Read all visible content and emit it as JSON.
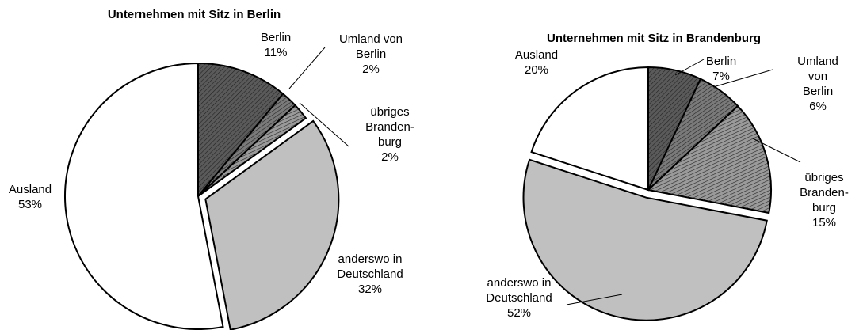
{
  "chart_data": [
    {
      "type": "pie",
      "title": "Unternehmen mit Sitz in Berlin",
      "categories": [
        "Berlin",
        "Umland von\nBerlin",
        "übriges\nBranden-\nburg",
        "anderswo in\nDeutschland",
        "Ausland"
      ],
      "values": [
        11,
        2,
        2,
        32,
        53
      ],
      "value_labels": [
        "11%",
        "2%",
        "2%",
        "32%",
        "53%"
      ],
      "colors": [
        "#5a5a5a",
        "#7a7a7a",
        "#9a9a9a",
        "#c0c0c0",
        "#ffffff"
      ],
      "hatched": [
        true,
        true,
        true,
        false,
        false
      ],
      "exploded": [
        false,
        false,
        false,
        true,
        false
      ]
    },
    {
      "type": "pie",
      "title": "Unternehmen mit Sitz in Brandenburg",
      "categories": [
        "Berlin",
        "Umland von\nBerlin",
        "übriges\nBranden-\nburg",
        "anderswo in\nDeutschland",
        "Ausland"
      ],
      "values": [
        7,
        6,
        15,
        52,
        20
      ],
      "value_labels": [
        "7%",
        "6%",
        "15%",
        "52%",
        "20%"
      ],
      "colors": [
        "#5a5a5a",
        "#7a7a7a",
        "#9a9a9a",
        "#c0c0c0",
        "#ffffff"
      ],
      "hatched": [
        true,
        true,
        true,
        false,
        false
      ],
      "exploded": [
        false,
        false,
        false,
        true,
        false
      ]
    }
  ]
}
